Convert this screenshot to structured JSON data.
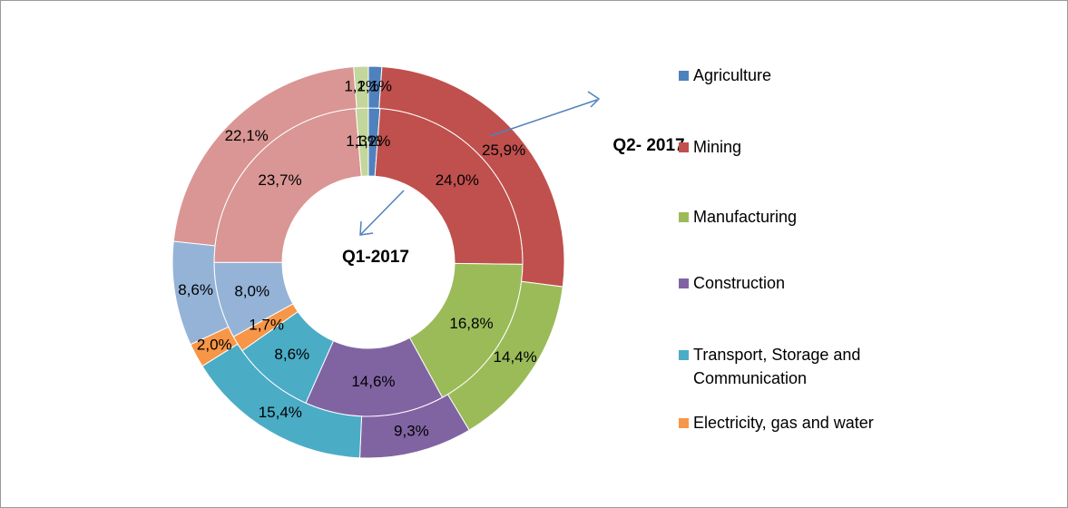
{
  "chart_data": {
    "type": "donut",
    "categories": [
      "Agriculture",
      "Mining",
      "Manufacturing",
      "Construction",
      "Transport, Storage and Communication",
      "Electricity, gas and water",
      null,
      null,
      null
    ],
    "colors": [
      "#4f81bd",
      "#c0504d",
      "#9bbb59",
      "#8064a2",
      "#4bacc6",
      "#f79646",
      "#95b3d7",
      "#d99694",
      "#c3d69b"
    ],
    "series": [
      {
        "name": "Q1-2017",
        "values": [
          1.2,
          24.0,
          16.8,
          14.6,
          8.6,
          1.7,
          8.0,
          23.7,
          1.3
        ],
        "value_labels": [
          "1,2%",
          "24,0%",
          "16,8%",
          "14,6%",
          "8,6%",
          "1,7%",
          "8,0%",
          "23,7%",
          "1,3%"
        ]
      },
      {
        "name": "Q2- 2017",
        "values": [
          1.1,
          25.9,
          14.4,
          9.3,
          15.4,
          2.0,
          8.6,
          22.1,
          1.2
        ],
        "value_labels": [
          "1,1%",
          "25,9%",
          "14,4%",
          "9,3%",
          "15,4%",
          "2,0%",
          "8,6%",
          "22,1%",
          "1,2%"
        ]
      }
    ]
  }
}
